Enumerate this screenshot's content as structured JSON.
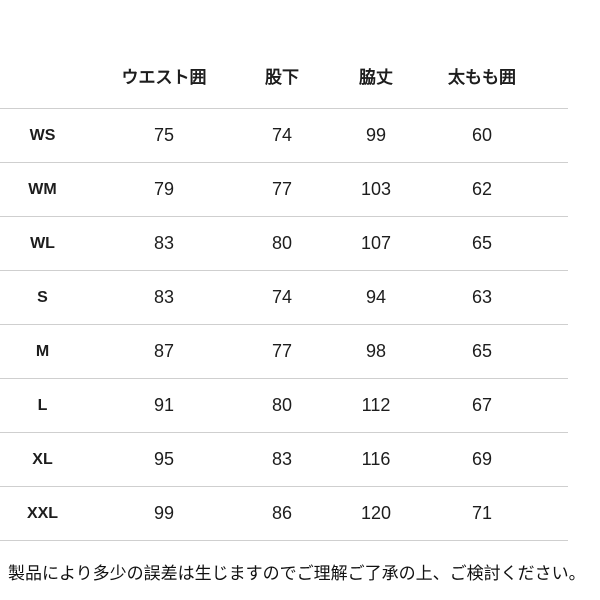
{
  "table": {
    "columns": [
      "ウエスト囲",
      "股下",
      "脇丈",
      "太もも囲"
    ],
    "rows": [
      {
        "size": "WS",
        "values": [
          "75",
          "74",
          "99",
          "60"
        ]
      },
      {
        "size": "WM",
        "values": [
          "79",
          "77",
          "103",
          "62"
        ]
      },
      {
        "size": "WL",
        "values": [
          "83",
          "80",
          "107",
          "65"
        ]
      },
      {
        "size": "S",
        "values": [
          "83",
          "74",
          "94",
          "63"
        ]
      },
      {
        "size": "M",
        "values": [
          "87",
          "77",
          "98",
          "65"
        ]
      },
      {
        "size": "L",
        "values": [
          "91",
          "80",
          "112",
          "67"
        ]
      },
      {
        "size": "XL",
        "values": [
          "95",
          "83",
          "116",
          "69"
        ]
      },
      {
        "size": "XXL",
        "values": [
          "99",
          "86",
          "120",
          "71"
        ]
      }
    ]
  },
  "footer": {
    "note": "製品により多少の誤差は生じますのでご理解ご了承の上、ご検討ください。"
  },
  "colors": {
    "background": "#ffffff",
    "text": "#1d1d1d",
    "divider": "#cfcfcf"
  }
}
